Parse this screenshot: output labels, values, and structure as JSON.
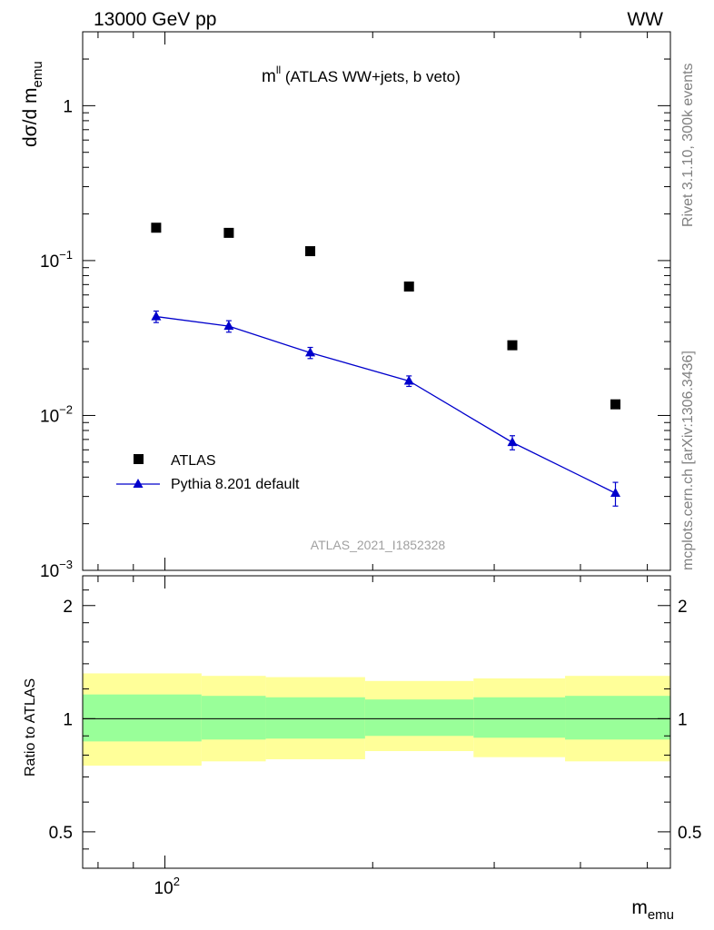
{
  "header": {
    "left": "13000 GeV pp",
    "right": "WW"
  },
  "side": {
    "top": "Rivet 3.1.10,  300k events",
    "bottom": "mcplots.cern.ch [arXiv:1306.3436]"
  },
  "chart_data": [
    {
      "type": "scatter",
      "title_main": "m",
      "title_sup": "ll",
      "title_rest": " (ATLAS WW+jets, b veto)",
      "ylabel_main": "dσ/d m",
      "ylabel_sub": "emu",
      "watermark": "ATLAS_2021_I1852328",
      "xscale": "log",
      "yscale": "log",
      "xlim": [
        76,
        480
      ],
      "ylim": [
        0.001,
        3.0
      ],
      "ytick_labels": [
        {
          "v": 1,
          "base": "1",
          "exp": ""
        },
        {
          "v": 0.1,
          "base": "10",
          "exp": "−1"
        },
        {
          "v": 0.01,
          "base": "10",
          "exp": "−2"
        },
        {
          "v": 0.001,
          "base": "10",
          "exp": "−3"
        }
      ],
      "legend_position": "lower-left",
      "series": [
        {
          "name": "ATLAS",
          "marker": "square",
          "color": "#000000",
          "x": [
            98,
            126,
            167,
            235,
            336,
            480
          ],
          "y": [
            0.163,
            0.151,
            0.115,
            0.068,
            0.0284,
            0.0118
          ]
        },
        {
          "name": "Pythia 8.201 default",
          "marker": "triangle",
          "color": "#0000cc",
          "x": [
            98,
            126,
            167,
            235,
            336,
            480
          ],
          "y": [
            0.0435,
            0.0377,
            0.0254,
            0.0167,
            0.0067,
            0.00315
          ],
          "yerr": [
            0.0037,
            0.0032,
            0.0021,
            0.0013,
            0.0007,
            0.00055
          ]
        }
      ]
    },
    {
      "type": "area",
      "ylabel": "Ratio to ATLAS",
      "xlabel_main": "m",
      "xlabel_sub": "emu",
      "xscale": "log",
      "xlim": [
        76,
        540
      ],
      "ylim": [
        0.4,
        2.4
      ],
      "xtick_labels": [
        {
          "v": 100,
          "base": "10",
          "exp": "2"
        }
      ],
      "ytick_labels": [
        {
          "v": 2,
          "label": "2"
        },
        {
          "v": 1,
          "label": "1"
        },
        {
          "v": 0.5,
          "label": "0.5"
        }
      ],
      "reference_line": 1.0,
      "bands": [
        {
          "x0": 76,
          "x1": 113,
          "green": [
            0.87,
            1.16
          ],
          "yellow": [
            0.75,
            1.32
          ]
        },
        {
          "x0": 113,
          "x1": 140,
          "green": [
            0.88,
            1.15
          ],
          "yellow": [
            0.77,
            1.3
          ]
        },
        {
          "x0": 140,
          "x1": 195,
          "green": [
            0.885,
            1.14
          ],
          "yellow": [
            0.78,
            1.29
          ]
        },
        {
          "x0": 195,
          "x1": 280,
          "green": [
            0.9,
            1.125
          ],
          "yellow": [
            0.82,
            1.26
          ]
        },
        {
          "x0": 280,
          "x1": 380,
          "green": [
            0.89,
            1.14
          ],
          "yellow": [
            0.79,
            1.28
          ]
        },
        {
          "x0": 380,
          "x1": 540,
          "green": [
            0.88,
            1.15
          ],
          "yellow": [
            0.77,
            1.3
          ]
        }
      ],
      "band_colors": {
        "green": "#99ff99",
        "yellow": "#ffff99"
      }
    }
  ]
}
